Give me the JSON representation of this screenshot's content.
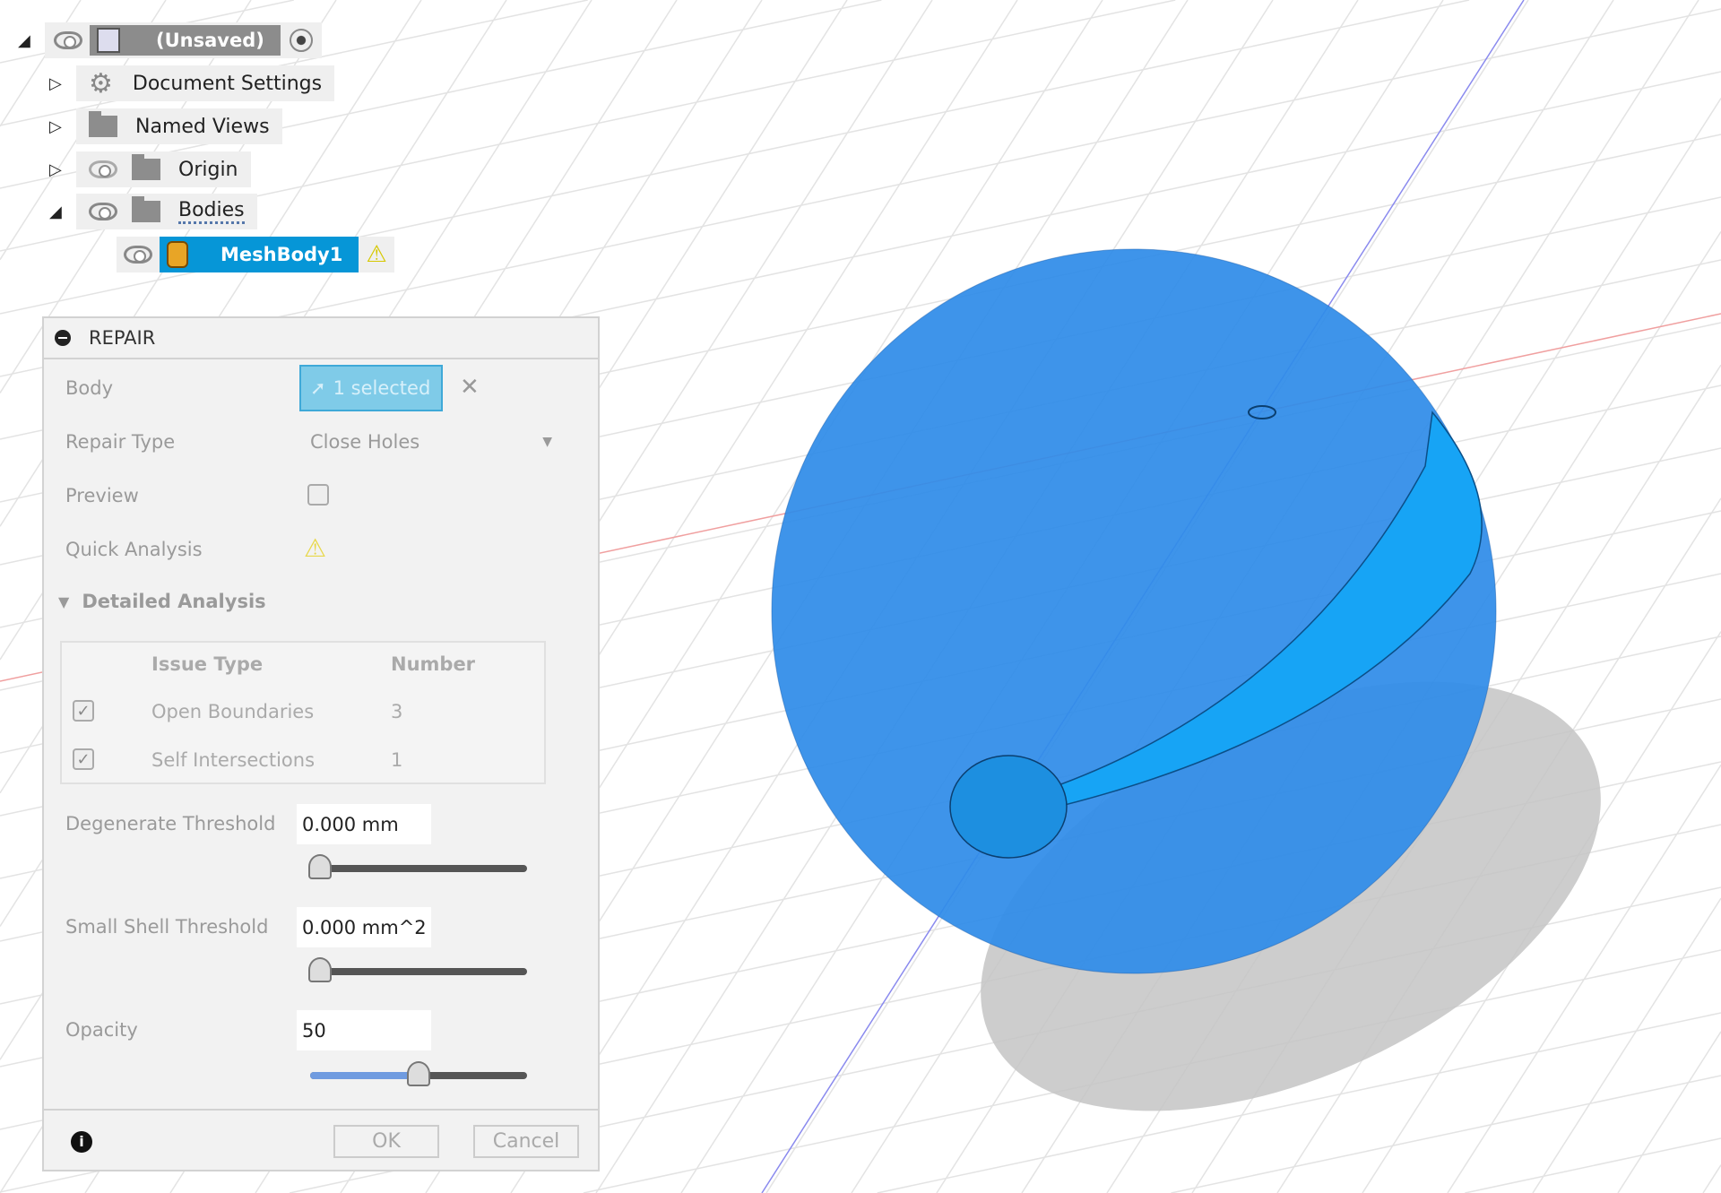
{
  "browser": {
    "root": {
      "label": "(Unsaved)"
    },
    "items": [
      {
        "label": "Document Settings",
        "icon": "gear-icon"
      },
      {
        "label": "Named Views",
        "icon": "folder-icon"
      },
      {
        "label": "Origin",
        "icon": "folder-icon",
        "visible": false
      },
      {
        "label": "Bodies",
        "icon": "folder-icon",
        "visible": true
      }
    ],
    "body": {
      "label": "MeshBody1",
      "warning": true
    }
  },
  "repair": {
    "title": "REPAIR",
    "body_label": "Body",
    "body_value": "1 selected",
    "repair_type_label": "Repair Type",
    "repair_type_value": "Close Holes",
    "preview_label": "Preview",
    "preview_checked": false,
    "quick_analysis_label": "Quick Analysis",
    "detailed_analysis_label": "Detailed Analysis",
    "table": {
      "headers": [
        "Issue Type",
        "Number"
      ],
      "rows": [
        {
          "checked": true,
          "type": "Open Boundaries",
          "number": "3"
        },
        {
          "checked": true,
          "type": "Self Intersections",
          "number": "1"
        }
      ]
    },
    "degenerate_label": "Degenerate Threshold",
    "degenerate_value": "0.000 mm",
    "small_shell_label": "Small Shell Threshold",
    "small_shell_value": "0.000 mm^2",
    "opacity_label": "Opacity",
    "opacity_value": "50",
    "opacity_percent": 50,
    "ok_label": "OK",
    "cancel_label": "Cancel"
  },
  "colors": {
    "accent": "#0696d7",
    "mesh": "#2f8ce8",
    "warning": "#f5e400"
  }
}
